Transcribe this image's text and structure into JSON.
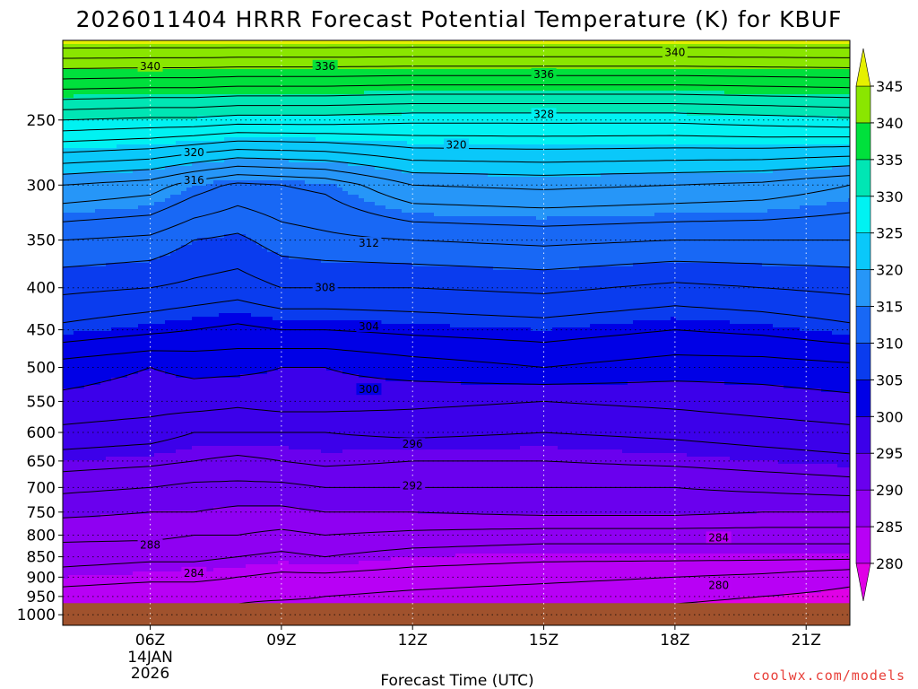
{
  "title": "2026011404 HRRR Forecast Potential Temperature (K) for KBUF",
  "xlabel": "Forecast Time (UTC)",
  "credit": "coolwx.com/models",
  "chart_data": {
    "type": "heatmap",
    "title": "2026011404 HRRR Forecast Potential Temperature (K) for KBUF",
    "xlabel": "Forecast Time (UTC)",
    "ylabel": "",
    "x_range_hours": [
      4,
      22
    ],
    "x_ticks": [
      {
        "hour": 6,
        "label": "06Z",
        "sub": [
          "14JAN",
          "2026"
        ]
      },
      {
        "hour": 9,
        "label": "09Z",
        "sub": []
      },
      {
        "hour": 12,
        "label": "12Z",
        "sub": []
      },
      {
        "hour": 15,
        "label": "15Z",
        "sub": []
      },
      {
        "hour": 18,
        "label": "18Z",
        "sub": []
      },
      {
        "hour": 21,
        "label": "21Z",
        "sub": []
      }
    ],
    "y_scale": "log-pressure",
    "y_range_hpa": [
      1030,
      200
    ],
    "y_ticks": [
      250,
      300,
      350,
      400,
      450,
      500,
      550,
      600,
      650,
      700,
      750,
      800,
      850,
      900,
      950,
      1000
    ],
    "surface_pressure_hpa": 968,
    "colorbar": {
      "labels": [
        280,
        285,
        290,
        295,
        300,
        305,
        310,
        315,
        320,
        325,
        330,
        335,
        340,
        345
      ],
      "extend": "both"
    },
    "contour_interval_k": 2,
    "contour_labels": [
      {
        "value": 340,
        "hour": 6.0,
        "p": 215
      },
      {
        "value": 336,
        "hour": 10.0,
        "p": 215
      },
      {
        "value": 336,
        "hour": 15.0,
        "p": 220
      },
      {
        "value": 340,
        "hour": 18.0,
        "p": 207
      },
      {
        "value": 328,
        "hour": 15.0,
        "p": 246
      },
      {
        "value": 320,
        "hour": 7.0,
        "p": 274
      },
      {
        "value": 320,
        "hour": 13.0,
        "p": 268
      },
      {
        "value": 316,
        "hour": 7.0,
        "p": 296
      },
      {
        "value": 312,
        "hour": 11.0,
        "p": 353
      },
      {
        "value": 308,
        "hour": 10.0,
        "p": 400
      },
      {
        "value": 304,
        "hour": 11.0,
        "p": 446
      },
      {
        "value": 300,
        "hour": 11.0,
        "p": 532
      },
      {
        "value": 296,
        "hour": 12.0,
        "p": 620
      },
      {
        "value": 292,
        "hour": 12.0,
        "p": 697
      },
      {
        "value": 288,
        "hour": 6.0,
        "p": 823
      },
      {
        "value": 284,
        "hour": 7.0,
        "p": 890
      },
      {
        "value": 284,
        "hour": 19.0,
        "p": 806
      },
      {
        "value": 280,
        "hour": 19.0,
        "p": 921
      }
    ],
    "theta_profile": {
      "hours": [
        4,
        6,
        7,
        8,
        9,
        10,
        12,
        15,
        18,
        20,
        22
      ],
      "levels_hpa": [
        200,
        250,
        300,
        350,
        400,
        450,
        500,
        550,
        600,
        650,
        700,
        750,
        800,
        850,
        900,
        950,
        970
      ],
      "theta_k": [
        [
          345.5,
          345.5,
          345.5,
          345.5,
          345.5,
          345.5,
          345.5,
          345.5,
          345.5,
          345.5,
          345.5
        ],
        [
          330,
          329.5,
          329.5,
          329,
          329,
          329,
          328.5,
          328.5,
          328.5,
          329,
          329.5
        ],
        [
          318,
          317,
          315,
          313.5,
          314,
          314.5,
          318,
          318.5,
          318,
          317.5,
          316
        ],
        [
          312,
          311.5,
          310,
          309.5,
          311,
          311.5,
          312,
          312.5,
          312,
          312,
          312
        ],
        [
          308.5,
          308,
          307.5,
          307,
          308,
          308,
          308,
          308.5,
          307.5,
          308,
          308.5
        ],
        [
          305.5,
          304.5,
          304,
          303.5,
          304,
          304,
          304.5,
          305,
          304,
          304.5,
          305.5
        ],
        [
          301,
          300,
          300.5,
          300.5,
          300,
          300,
          301,
          302,
          301,
          301,
          301.5
        ],
        [
          299.5,
          299,
          299,
          298.5,
          299,
          299,
          298.5,
          298,
          298.5,
          299,
          299.5
        ],
        [
          297.5,
          297,
          296,
          296,
          296,
          296,
          296.5,
          296,
          296.5,
          297,
          297.5
        ],
        [
          295,
          294.5,
          294,
          293.5,
          294,
          294.5,
          294,
          294,
          294.5,
          295,
          295.5
        ],
        [
          292.5,
          292,
          291.5,
          291.5,
          291.5,
          292,
          292,
          292,
          292,
          292.5,
          293
        ],
        [
          290.5,
          290,
          290,
          289.5,
          289.5,
          290,
          290,
          290.5,
          290.5,
          290,
          290
        ],
        [
          288.5,
          288.5,
          288,
          288,
          287.5,
          288,
          287.5,
          287,
          287,
          287,
          287
        ],
        [
          287,
          286.5,
          286.5,
          286,
          285.5,
          286,
          285,
          284.5,
          284.5,
          284.5,
          284.5
        ],
        [
          285,
          284.5,
          284.5,
          284,
          283.5,
          283.5,
          283,
          282.5,
          282,
          281.5,
          280.5
        ],
        [
          283,
          282.5,
          282.5,
          282.5,
          282.5,
          282,
          281.5,
          281,
          280.5,
          280,
          279.5
        ],
        [
          282.5,
          282,
          282,
          282,
          281.5,
          281.5,
          281,
          280.5,
          280,
          279.5,
          279
        ]
      ]
    }
  }
}
